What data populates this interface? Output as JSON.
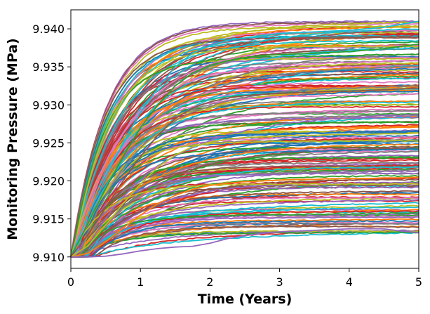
{
  "chart_data": {
    "type": "line",
    "title": "",
    "xlabel": "Time (Years)",
    "ylabel": "Monitoring Pressure (MPa)",
    "xlim": [
      0,
      5
    ],
    "ylim": [
      9.9085,
      9.9425
    ],
    "xticks": [
      0,
      1,
      2,
      3,
      4,
      5
    ],
    "xtick_labels": [
      "0",
      "1",
      "2",
      "3",
      "4",
      "5"
    ],
    "yticks": [
      9.91,
      9.915,
      9.92,
      9.925,
      9.93,
      9.935,
      9.94
    ],
    "ytick_labels": [
      "9.910",
      "9.915",
      "9.920",
      "9.925",
      "9.930",
      "9.935",
      "9.940"
    ],
    "grid": false,
    "legend": "none",
    "x": [
      0,
      0.25,
      0.5,
      0.75,
      1,
      1.25,
      1.5,
      1.75,
      2,
      2.25,
      2.5,
      2.75,
      3,
      3.25,
      3.5,
      3.75,
      4,
      4.25,
      4.5,
      4.75,
      5
    ],
    "series_count": 200,
    "initial_value": 9.91,
    "final_value_range": [
      9.9132,
      9.941
    ],
    "series_colors": [
      "#1f77b4",
      "#ff7f0e",
      "#2ca02c",
      "#d62728",
      "#9467bd",
      "#8c564b",
      "#e377c2",
      "#7f7f7f",
      "#bcbd22",
      "#17becf"
    ],
    "series": [
      {
        "values": [
          9.91,
          9.9155,
          9.9205,
          9.925,
          9.929,
          9.9322,
          9.935,
          9.9368,
          9.9378,
          9.9385,
          9.9388,
          9.9391,
          9.9394,
          9.9395,
          9.9396,
          9.9397,
          9.9398,
          9.94,
          9.9402,
          9.9406,
          9.941
        ]
      },
      {
        "values": [
          9.91,
          9.9145,
          9.919,
          9.9232,
          9.927,
          9.93,
          9.9325,
          9.9342,
          9.9352,
          9.9358,
          9.9362,
          9.9365,
          9.9366,
          9.9367,
          9.9368,
          9.9369,
          9.937,
          9.9372,
          9.9374,
          9.9377,
          9.938
        ]
      },
      {
        "values": [
          9.91,
          9.913,
          9.9165,
          9.92,
          9.9232,
          9.926,
          9.9282,
          9.9296,
          9.9304,
          9.9309,
          9.9312,
          9.9314,
          9.9315,
          9.9316,
          9.9317,
          9.9318,
          9.9318,
          9.9319,
          9.932,
          9.9321,
          9.9322
        ]
      },
      {
        "values": [
          9.91,
          9.9115,
          9.9142,
          9.917,
          9.9196,
          9.9218,
          9.9234,
          9.9245,
          9.9251,
          9.9255,
          9.9257,
          9.9258,
          9.9259,
          9.926,
          9.926,
          9.9261,
          9.9261,
          9.9261,
          9.9262,
          9.9262,
          9.9263
        ]
      },
      {
        "values": [
          9.91,
          9.9105,
          9.912,
          9.9138,
          9.9155,
          9.917,
          9.9181,
          9.9189,
          9.9194,
          9.9197,
          9.9199,
          9.92,
          9.9201,
          9.9202,
          9.9202,
          9.9203,
          9.9203,
          9.9203,
          9.9204,
          9.9204,
          9.9205
        ]
      },
      {
        "values": [
          9.91,
          9.91,
          9.9101,
          9.9104,
          9.9108,
          9.9111,
          9.9113,
          9.9114,
          9.9118,
          9.9124,
          9.9128,
          9.9131,
          9.9133,
          9.9134,
          9.9135,
          9.9136,
          9.9137,
          9.9137,
          9.9137,
          9.9134,
          9.9132
        ]
      }
    ],
    "trend_note": ""
  }
}
